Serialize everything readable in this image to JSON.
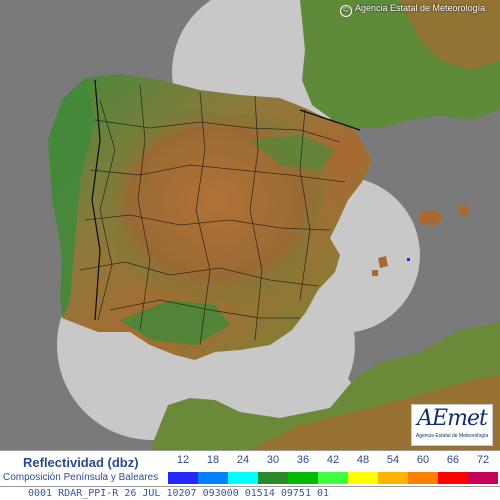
{
  "copyright": "Agencia Estatal de Meteorología",
  "logo": {
    "brand": "AEmet",
    "subtitle": "Agencia Estatal de Meteorología"
  },
  "legend": {
    "title": "Reflectividad (dbz)",
    "subtitle": "Composición Península y Baleares",
    "bins": [
      {
        "value": "12",
        "color": "#2626ff"
      },
      {
        "value": "18",
        "color": "#0080ff"
      },
      {
        "value": "24",
        "color": "#00ffff"
      },
      {
        "value": "30",
        "color": "#2a8a2a"
      },
      {
        "value": "36",
        "color": "#00bb00"
      },
      {
        "value": "42",
        "color": "#40ff40"
      },
      {
        "value": "48",
        "color": "#ffff00"
      },
      {
        "value": "54",
        "color": "#ffb400"
      },
      {
        "value": "60",
        "color": "#ff8000"
      },
      {
        "value": "66",
        "color": "#ff0000"
      },
      {
        "value": "72",
        "color": "#c8005a"
      }
    ]
  },
  "status_line": "0001 RDAR_PPI-R   26 JUL 10207 093000 01514 09751 01",
  "colors": {
    "sea": "#7a7a7a",
    "radar_coverage": "#c8c8c8",
    "lowland": "#3f8a3a",
    "highland": "#a86a32"
  }
}
